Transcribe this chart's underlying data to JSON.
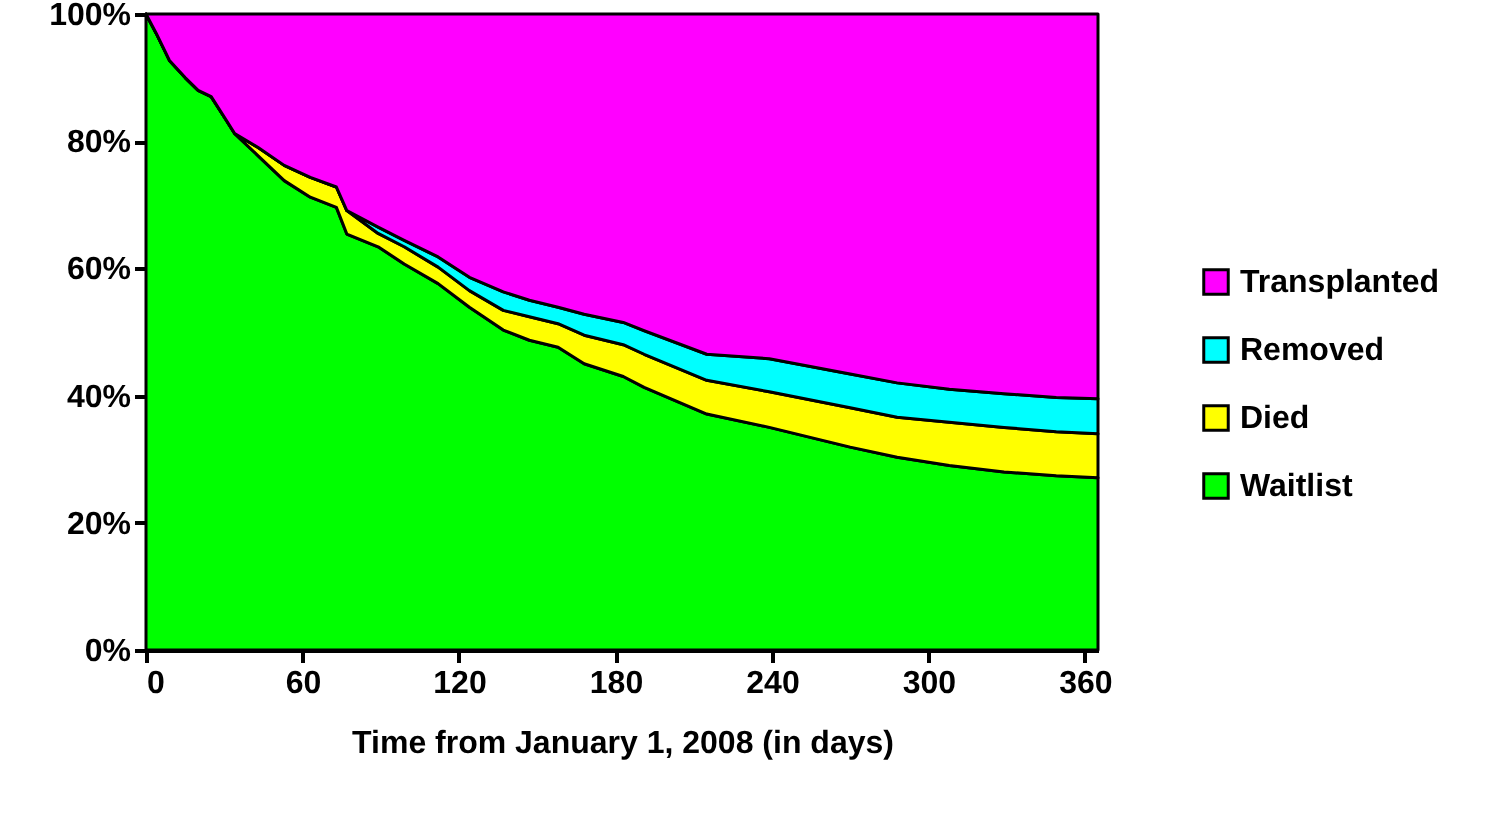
{
  "chart_data": {
    "type": "area",
    "stacked": true,
    "xlabel": "Time from January 1, 2008 (in days)",
    "x": [
      0,
      4,
      9,
      15,
      20,
      25,
      30,
      34,
      43,
      53,
      63,
      73,
      77,
      89,
      99,
      112,
      124,
      137,
      147,
      158,
      168,
      183,
      191,
      215,
      239,
      270,
      288,
      308,
      329,
      349,
      365
    ],
    "series": [
      {
        "name": "Waitlist",
        "color": "#00ff00",
        "values": [
          100,
          96.9,
          92.7,
          90,
          88,
          87,
          83.8,
          81.2,
          77.7,
          73.8,
          71.2,
          69.6,
          65.4,
          63.4,
          60.7,
          57.6,
          53.9,
          50.3,
          48.7,
          47.6,
          45,
          43,
          41.3,
          37.1,
          35,
          31.9,
          30.3,
          29,
          28,
          27.4,
          27.1
        ]
      },
      {
        "name": "Died",
        "color": "#ffff00",
        "values": [
          0,
          0,
          0,
          0,
          0,
          0,
          0,
          0,
          1.3,
          2.4,
          3.1,
          3.2,
          3.7,
          2.1,
          2.7,
          2.6,
          2.6,
          3.1,
          3.7,
          3.7,
          4.5,
          5,
          5.2,
          5.3,
          5.6,
          6.2,
          6.3,
          6.8,
          7,
          6.9,
          6.9
        ]
      },
      {
        "name": "Removed",
        "color": "#00ffff",
        "values": [
          0,
          0,
          0,
          0,
          0,
          0,
          0,
          0,
          0,
          0,
          0,
          0,
          0,
          1,
          1,
          1.6,
          2.1,
          2.9,
          2.6,
          2.6,
          3.3,
          3.5,
          3.7,
          4.1,
          5.2,
          5.3,
          5.4,
          5.2,
          5.3,
          5.4,
          5.5
        ]
      },
      {
        "name": "Transplanted",
        "color": "#ff00ff",
        "values": [
          0,
          3.1,
          7.3,
          10,
          12,
          13,
          16.2,
          18.8,
          21,
          23.8,
          25.7,
          27.2,
          30.9,
          33.5,
          35.6,
          38.2,
          41.4,
          43.7,
          45,
          46.1,
          47.2,
          48.5,
          49.8,
          53.5,
          54.2,
          56.6,
          58,
          59,
          59.7,
          60.3,
          60.5
        ]
      }
    ],
    "xlim": [
      0,
      365
    ],
    "xticks": [
      0,
      60,
      120,
      180,
      240,
      300,
      360
    ],
    "ylim": [
      0,
      100
    ],
    "yticks": [
      {
        "value": 0,
        "label": "0%"
      },
      {
        "value": 20,
        "label": "20%"
      },
      {
        "value": 40,
        "label": "40%"
      },
      {
        "value": 60,
        "label": "60%"
      },
      {
        "value": 80,
        "label": "80%"
      },
      {
        "value": 100,
        "label": "100%"
      }
    ],
    "legend": "right"
  }
}
